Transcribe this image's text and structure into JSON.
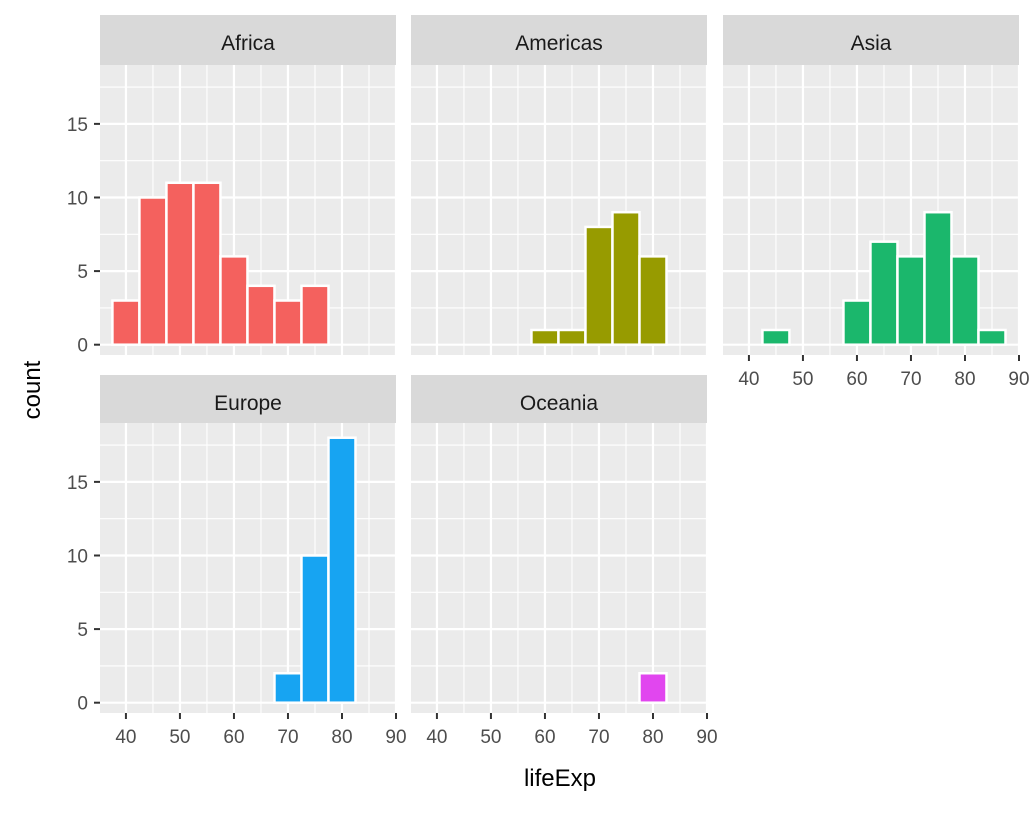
{
  "chart_data": {
    "type": "bar",
    "subtype": "faceted-histogram",
    "xlabel": "lifeExp",
    "ylabel": "count",
    "xlim": [
      35.2,
      90
    ],
    "ylim": [
      -0.7,
      19
    ],
    "x_ticks": [
      "40",
      "50",
      "60",
      "70",
      "80",
      "90"
    ],
    "y_ticks": [
      "0",
      "5",
      "10",
      "15"
    ],
    "binwidth": 5,
    "grid": true,
    "facets": [
      {
        "name": "Africa",
        "color": "#F4615E",
        "bins": [
          40,
          45,
          50,
          55,
          60,
          65,
          70,
          75
        ],
        "counts": [
          3,
          10,
          11,
          11,
          6,
          4,
          3,
          4
        ]
      },
      {
        "name": "Americas",
        "color": "#979B00",
        "bins": [
          60,
          65,
          70,
          75,
          80
        ],
        "counts": [
          1,
          1,
          8,
          9,
          6
        ]
      },
      {
        "name": "Asia",
        "color": "#1BB76C",
        "bins": [
          45,
          60,
          65,
          70,
          75,
          80,
          85
        ],
        "counts": [
          1,
          3,
          7,
          6,
          9,
          6,
          1
        ]
      },
      {
        "name": "Europe",
        "color": "#17A4F2",
        "bins": [
          70,
          75,
          80
        ],
        "counts": [
          2,
          10,
          18
        ]
      },
      {
        "name": "Oceania",
        "color": "#E146EF",
        "bins": [
          80
        ],
        "counts": [
          2
        ]
      }
    ]
  }
}
